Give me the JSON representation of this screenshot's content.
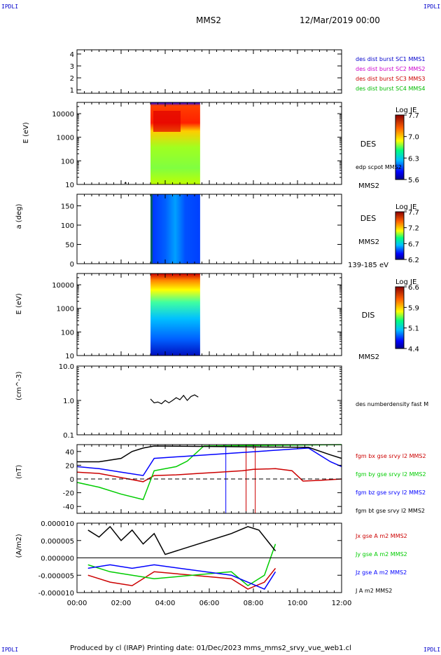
{
  "corner_marks": {
    "top_left": "IPDLI",
    "top_right": "IPDLI",
    "bottom_left": "IPDLI",
    "bottom_right": "IPDLI"
  },
  "header": {
    "spacecraft": "MMS2",
    "datetime": "12/Mar/2019 00:00"
  },
  "footer": {
    "text": "Produced by cl (IRAP)   Printing date: 01/Dec/2023   mms_mms2_srvy_vue_web1.cl"
  },
  "colors": {
    "c1": "#0000cc",
    "c2": "#cc00cc",
    "c3": "#cc0000",
    "c4": "#00bb00",
    "bx": "#cc0000",
    "by": "#00cc00",
    "bz": "#0000ff",
    "bt": "#000000"
  },
  "chart_data": [
    {
      "type": "table",
      "panel": "burst-availability",
      "yticks": [
        "4",
        "3",
        "2",
        "1"
      ],
      "legend": [
        {
          "name": "des dist burst SC1 MMS1",
          "color": "#0000cc"
        },
        {
          "name": "des dist burst SC2 MMS2",
          "color": "#cc00cc"
        },
        {
          "name": "des dist burst SC3 MMS3",
          "color": "#cc0000"
        },
        {
          "name": "des dist burst SC4 MMS4",
          "color": "#00bb00"
        }
      ]
    },
    {
      "type": "heatmap",
      "panel": "des-energy",
      "ylabel": "E (eV)",
      "yscale": "log",
      "ylim": [
        10,
        30000
      ],
      "yticks": [
        "10000",
        "1000",
        "100",
        "10"
      ],
      "data_x_range": [
        "03:20",
        "05:35"
      ],
      "label": "DES",
      "annotations": [
        "edp scpot MMS2",
        "MMS2"
      ],
      "colorbar": {
        "title": "Log JE",
        "ticks": [
          "7.7",
          "7.0",
          "6.3",
          "5.6"
        ],
        "range": [
          5.6,
          7.7
        ]
      },
      "overlay": {
        "name": "edp scpot",
        "x": [
          "02:10",
          "02:12",
          "02:14"
        ],
        "y": [
          11,
          12,
          11
        ]
      }
    },
    {
      "type": "heatmap",
      "panel": "des-pitch",
      "ylabel": "a (deg)",
      "ylim": [
        0,
        180
      ],
      "yticks": [
        "150",
        "100",
        "50",
        "0"
      ],
      "data_x_range": [
        "03:20",
        "05:35"
      ],
      "label": "DES",
      "annotations": [
        "MMS2",
        "139-185 eV"
      ],
      "colorbar": {
        "title": "Log JE",
        "ticks": [
          "7.7",
          "7.2",
          "6.7",
          "6.2"
        ],
        "range": [
          6.2,
          7.7
        ]
      }
    },
    {
      "type": "heatmap",
      "panel": "dis-energy",
      "ylabel": "E (eV)",
      "yscale": "log",
      "ylim": [
        10,
        30000
      ],
      "yticks": [
        "10000",
        "1000",
        "100",
        "10"
      ],
      "data_x_range": [
        "03:20",
        "05:35"
      ],
      "label": "DIS",
      "annotations": [
        "MMS2"
      ],
      "colorbar": {
        "title": "Log JE",
        "ticks": [
          "6.6",
          "5.9",
          "5.1",
          "4.4"
        ],
        "range": [
          4.4,
          6.6
        ]
      }
    },
    {
      "type": "line",
      "panel": "density",
      "ylabel": "(cm^-3)",
      "yscale": "log",
      "ylim": [
        0.1,
        10
      ],
      "yticks": [
        "10.0",
        "1.0",
        "0.1"
      ],
      "series": [
        {
          "name": "des numberdensity fast M",
          "x": [
            "03:20",
            "03:30",
            "03:40",
            "03:50",
            "04:00",
            "04:10",
            "04:20",
            "04:30",
            "04:40",
            "04:50",
            "05:00",
            "05:10",
            "05:20",
            "05:30"
          ],
          "y": [
            1.1,
            0.85,
            0.9,
            0.8,
            1.0,
            0.85,
            1.0,
            1.2,
            1.05,
            1.4,
            1.0,
            1.3,
            1.45,
            1.25
          ]
        }
      ]
    },
    {
      "type": "line",
      "panel": "magnetic-field",
      "ylabel": "(nT)",
      "ylim": [
        -50,
        50
      ],
      "yticks": [
        "40",
        "20",
        "0",
        "-20",
        "-40"
      ],
      "series": [
        {
          "name": "fgm bx gse srvy l2 MMS2",
          "color": "#cc0000",
          "x": [
            "00:00",
            "01:00",
            "02:00",
            "03:00",
            "03:30",
            "04:30",
            "05:30",
            "06:30",
            "07:00",
            "07:30",
            "08:00",
            "09:00",
            "09:45",
            "10:15",
            "11:00",
            "12:00"
          ],
          "y": [
            10,
            8,
            2,
            -4,
            5,
            6,
            8,
            10,
            11,
            12,
            14,
            15,
            12,
            -3,
            -2,
            0
          ]
        },
        {
          "name": "fgm by gse srvy l2 MMS2",
          "color": "#00cc00",
          "x": [
            "00:00",
            "01:00",
            "02:00",
            "03:00",
            "03:30",
            "04:30",
            "05:00",
            "05:45",
            "12:00"
          ],
          "y": [
            -5,
            -12,
            -22,
            -30,
            12,
            18,
            26,
            48,
            50
          ]
        },
        {
          "name": "fgm bz gse srvy l2 MMS2",
          "color": "#0000ff",
          "x": [
            "00:00",
            "01:00",
            "02:00",
            "03:00",
            "03:30",
            "10:30",
            "11:00",
            "11:30",
            "12:00"
          ],
          "y": [
            18,
            15,
            10,
            5,
            30,
            45,
            35,
            25,
            18
          ]
        },
        {
          "name": "fgm bt gse srvy l2 MMS2",
          "color": "#000000",
          "x": [
            "00:00",
            "01:00",
            "02:00",
            "02:30",
            "03:00",
            "03:30",
            "10:30",
            "11:30",
            "12:00"
          ],
          "y": [
            25,
            25,
            30,
            40,
            45,
            48,
            46,
            35,
            30
          ]
        }
      ],
      "vlines": [
        {
          "x": "06:45",
          "color": "#0000ff"
        },
        {
          "x": "07:40",
          "color": "#cc0000"
        },
        {
          "x": "08:05",
          "color": "#cc0000"
        }
      ]
    },
    {
      "type": "line",
      "panel": "current-density",
      "ylabel": "(A/m2)",
      "ylim": [
        -1e-05,
        1e-05
      ],
      "yticks": [
        "0.000010",
        "0.000005",
        "0.000000",
        "-0.000005",
        "-0.000010"
      ],
      "xticks": [
        "00:00",
        "02:00",
        "04:00",
        "06:00",
        "08:00",
        "10:00",
        "12:00"
      ],
      "series": [
        {
          "name": "Jx gse A m2 MMS2",
          "color": "#cc0000",
          "x": [
            "00:30",
            "01:30",
            "02:30",
            "03:30",
            "07:00",
            "07:45",
            "08:30",
            "09:00"
          ],
          "y": [
            -5e-06,
            -7e-06,
            -8e-06,
            -4e-06,
            -6e-06,
            -9e-06,
            -7e-06,
            -3e-06
          ]
        },
        {
          "name": "Jy gse A m2 MMS2",
          "color": "#00cc00",
          "x": [
            "00:30",
            "01:30",
            "02:30",
            "03:30",
            "07:00",
            "07:45",
            "08:30",
            "09:00"
          ],
          "y": [
            -2e-06,
            -4e-06,
            -5e-06,
            -6e-06,
            -4e-06,
            -8e-06,
            -5e-06,
            4e-06
          ]
        },
        {
          "name": "Jz gse A m2 MMS2",
          "color": "#0000ff",
          "x": [
            "00:30",
            "01:30",
            "02:30",
            "03:30",
            "07:00",
            "07:45",
            "08:30",
            "09:00"
          ],
          "y": [
            -3e-06,
            -2e-06,
            -3e-06,
            -2e-06,
            -5e-06,
            -7e-06,
            -9e-06,
            -4e-06
          ]
        },
        {
          "name": "J A m2 MMS2",
          "color": "#000000",
          "x": [
            "00:30",
            "01:00",
            "01:30",
            "02:00",
            "02:30",
            "03:00",
            "03:30",
            "04:00",
            "07:00",
            "07:45",
            "08:15",
            "09:00"
          ],
          "y": [
            8e-06,
            6e-06,
            9e-06,
            5e-06,
            8e-06,
            4e-06,
            7e-06,
            1e-06,
            7e-06,
            9e-06,
            8e-06,
            2e-06
          ]
        }
      ]
    }
  ]
}
